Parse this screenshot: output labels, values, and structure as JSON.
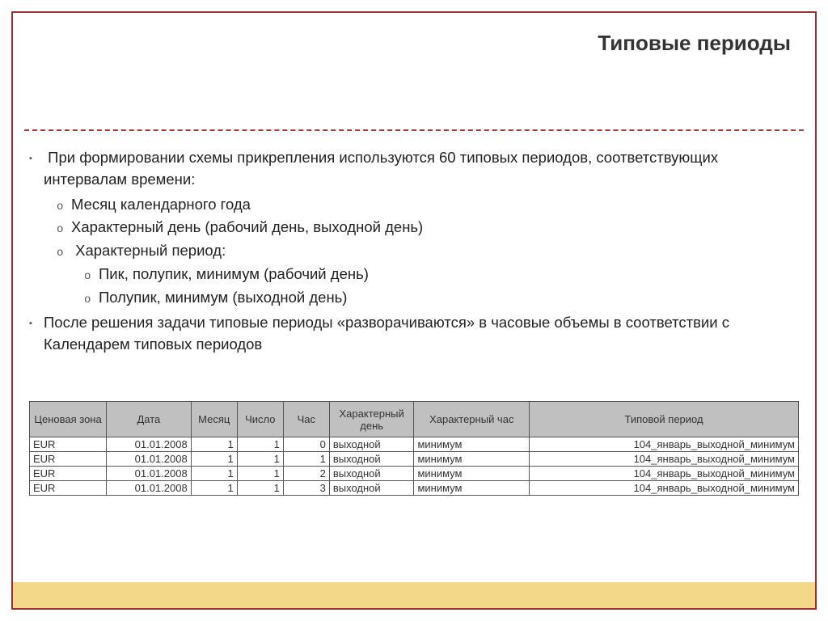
{
  "title": "Типовые периоды",
  "bullets": {
    "b1": "При формировании схемы прикрепления используются 60 типовых периодов, соответствующих интервалам времени:",
    "b1_1": "Месяц календарного года",
    "b1_2": "Характерный день (рабочий день, выходной день)",
    "b1_3": "Характерный период:",
    "b1_3_1": "Пик, полупик, минимум (рабочий день)",
    "b1_3_2": "Полупик, минимум (выходной день)",
    "b2": "После решения задачи типовые периоды «разворачиваются» в часовые объемы в соответствии с Календарем типовых периодов"
  },
  "table": {
    "columns": [
      {
        "label": "Ценовая зона",
        "width": "10%",
        "align": "left"
      },
      {
        "label": "Дата",
        "width": "11%",
        "align": "right"
      },
      {
        "label": "Месяц",
        "width": "6%",
        "align": "right"
      },
      {
        "label": "Число",
        "width": "6%",
        "align": "right"
      },
      {
        "label": "Час",
        "width": "6%",
        "align": "right"
      },
      {
        "label": "Характерный день",
        "width": "11%",
        "align": "left"
      },
      {
        "label": "Характерный час",
        "width": "15%",
        "align": "left"
      },
      {
        "label": "Типовой период",
        "width": "35%",
        "align": "right"
      }
    ],
    "rows": [
      [
        "EUR",
        "01.01.2008",
        "1",
        "1",
        "0",
        "выходной",
        "минимум",
        "104_январь_выходной_минимум"
      ],
      [
        "EUR",
        "01.01.2008",
        "1",
        "1",
        "1",
        "выходной",
        "минимум",
        "104_январь_выходной_минимум"
      ],
      [
        "EUR",
        "01.01.2008",
        "1",
        "1",
        "2",
        "выходной",
        "минимум",
        "104_январь_выходной_минимум"
      ],
      [
        "EUR",
        "01.01.2008",
        "1",
        "1",
        "3",
        "выходной",
        "минимум",
        "104_январь_выходной_минимум"
      ]
    ]
  },
  "colors": {
    "frame_border": "#9a2f2f",
    "dashed_separator": "#b23a3a",
    "table_header_bg": "#c0c0c0",
    "table_border": "#555555",
    "bottom_band": "#f4d88a",
    "text": "#222222"
  }
}
